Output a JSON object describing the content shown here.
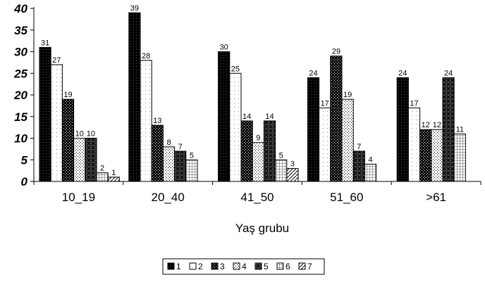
{
  "chart_data": {
    "type": "bar",
    "xlabel": "Yaş grubu",
    "ylabel": "",
    "ylim": [
      0,
      40
    ],
    "yticks": [
      0,
      5,
      10,
      15,
      20,
      25,
      30,
      35,
      40
    ],
    "grid": false,
    "legend_position": "bottom",
    "categories": [
      "10_19",
      "20_40",
      "41_50",
      "51_60",
      ">61"
    ],
    "series": [
      {
        "name": "1",
        "pattern": "solid",
        "values": [
          31,
          39,
          30,
          24,
          24
        ]
      },
      {
        "name": "2",
        "pattern": "dotted",
        "values": [
          27,
          28,
          25,
          17,
          17
        ]
      },
      {
        "name": "3",
        "pattern": "dense-check",
        "values": [
          19,
          13,
          14,
          29,
          12
        ]
      },
      {
        "name": "4",
        "pattern": "light-check",
        "values": [
          10,
          8,
          9,
          19,
          12
        ]
      },
      {
        "name": "5",
        "pattern": "crosshatch",
        "values": [
          10,
          7,
          14,
          7,
          24
        ]
      },
      {
        "name": "6",
        "pattern": "grid",
        "values": [
          2,
          5,
          5,
          4,
          11
        ]
      },
      {
        "name": "7",
        "pattern": "diagonal",
        "values": [
          1,
          null,
          3,
          null,
          null
        ]
      }
    ],
    "colors": {
      "ink": "#000000",
      "background": "#ffffff"
    }
  }
}
